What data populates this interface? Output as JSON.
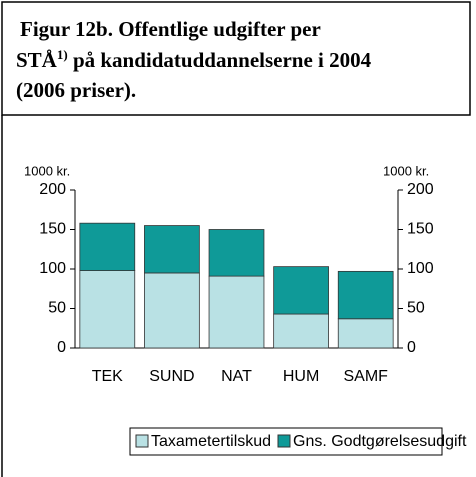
{
  "chart_data": {
    "type": "stacked_bar",
    "title": [
      "Figur 12b. Offentlige udgifter per",
      "STÅ",
      "1)",
      " på kandidatuddannelserne i 2004",
      "(2006 priser)."
    ],
    "y_unit": "1000 kr.",
    "y2_unit": "1000 kr.",
    "categories": [
      "TEK",
      "SUND",
      "NAT",
      "HUM",
      "SAMF"
    ],
    "series": [
      {
        "name": "Taxametertilskud",
        "color": "#b9e1e4",
        "values": [
          98,
          95,
          91,
          43,
          37
        ]
      },
      {
        "name": "Gns. Godtgørelsesudgift",
        "color": "#0f9a98",
        "values": [
          60,
          60,
          59,
          60,
          60
        ]
      }
    ],
    "ylim": [
      0,
      200
    ],
    "yticks": [
      0,
      50,
      100,
      150,
      200
    ],
    "y2lim": [
      0,
      200
    ],
    "y2ticks": [
      0,
      50,
      100,
      150,
      200
    ],
    "legend": "bottom"
  }
}
